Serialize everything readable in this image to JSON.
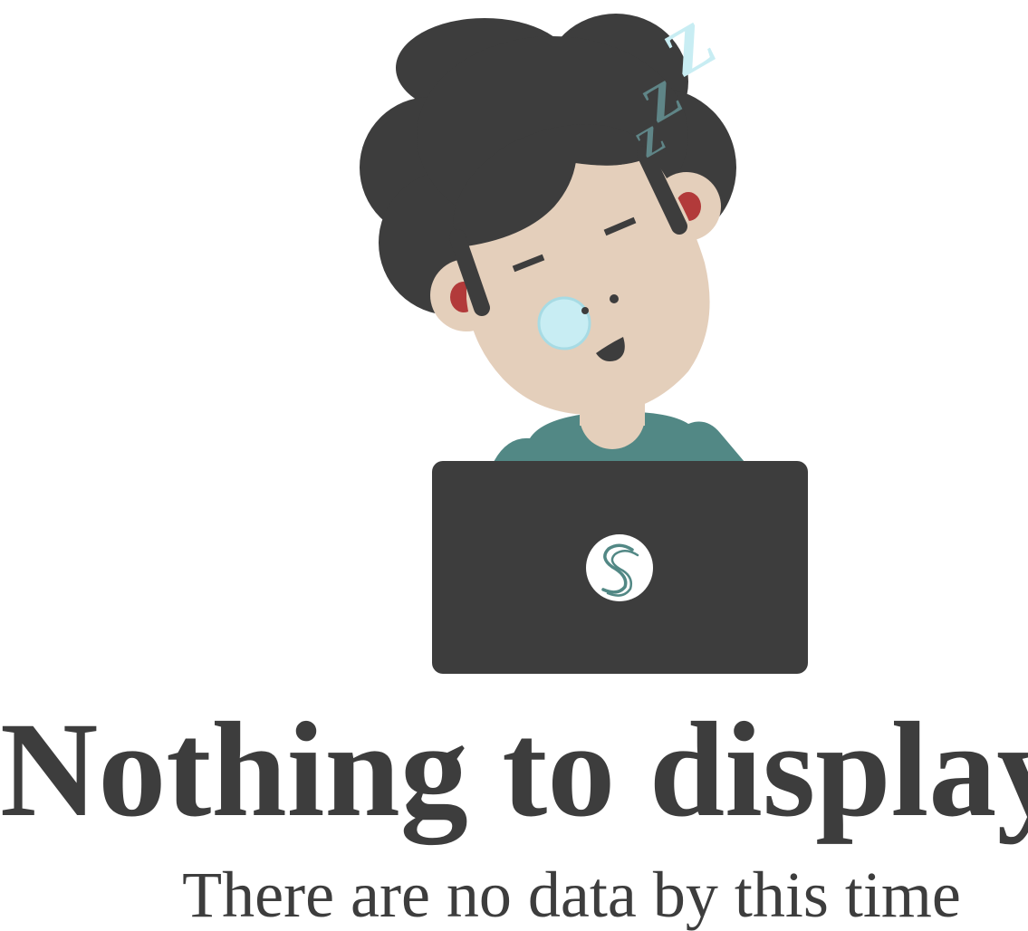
{
  "empty_state": {
    "title": "Nothing to display",
    "subtitle": "There are no data by this time"
  },
  "illustration": {
    "subject": "sleeping-person-at-laptop",
    "laptop_logo": "s-logo-icon",
    "colors": {
      "hair": "#3d3d3d",
      "skin": "#e4cfbb",
      "shirt": "#528885",
      "laptop": "#3d3d3d",
      "headphones": "#b23a3a",
      "bubble": "#c8edf3",
      "zzz_light": "#c8edf3",
      "zzz_dark": "#5f8587"
    }
  }
}
